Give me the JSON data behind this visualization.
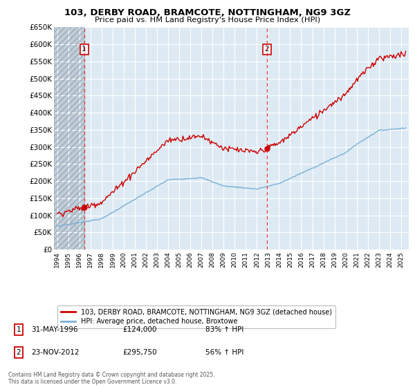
{
  "title": "103, DERBY ROAD, BRAMCOTE, NOTTINGHAM, NG9 3GZ",
  "subtitle": "Price paid vs. HM Land Registry's House Price Index (HPI)",
  "ylim": [
    0,
    650000
  ],
  "yticks": [
    0,
    50000,
    100000,
    150000,
    200000,
    250000,
    300000,
    350000,
    400000,
    450000,
    500000,
    550000,
    600000,
    650000
  ],
  "ytick_labels": [
    "£0",
    "£50K",
    "£100K",
    "£150K",
    "£200K",
    "£250K",
    "£300K",
    "£350K",
    "£400K",
    "£450K",
    "£500K",
    "£550K",
    "£600K",
    "£650K"
  ],
  "xlim_start": 1993.7,
  "xlim_end": 2025.7,
  "sale1_x": 1996.42,
  "sale1_y": 124000,
  "sale1_label": "1",
  "sale1_date": "31-MAY-1996",
  "sale1_price": "£124,000",
  "sale1_hpi": "83% ↑ HPI",
  "sale2_x": 2012.9,
  "sale2_y": 295750,
  "sale2_label": "2",
  "sale2_date": "23-NOV-2012",
  "sale2_price": "£295,750",
  "sale2_hpi": "56% ↑ HPI",
  "red_line_color": "#cc0000",
  "blue_line_color": "#7ab0d4",
  "background_color": "#ffffff",
  "plot_bg_color": "#ddeaf4",
  "grid_color": "#ffffff",
  "legend_label_red": "103, DERBY ROAD, BRAMCOTE, NOTTINGHAM, NG9 3GZ (detached house)",
  "legend_label_blue": "HPI: Average price, detached house, Broxtowe",
  "copyright_text": "Contains HM Land Registry data © Crown copyright and database right 2025.\nThis data is licensed under the Open Government Licence v3.0.",
  "hatch_color": "#b8c8d8",
  "dashed_vline_color": "#dd3333",
  "xtick_years": [
    1994,
    1995,
    1996,
    1997,
    1998,
    1999,
    2000,
    2001,
    2002,
    2003,
    2004,
    2005,
    2006,
    2007,
    2008,
    2009,
    2010,
    2011,
    2012,
    2013,
    2014,
    2015,
    2016,
    2017,
    2018,
    2019,
    2020,
    2021,
    2022,
    2023,
    2024,
    2025
  ]
}
